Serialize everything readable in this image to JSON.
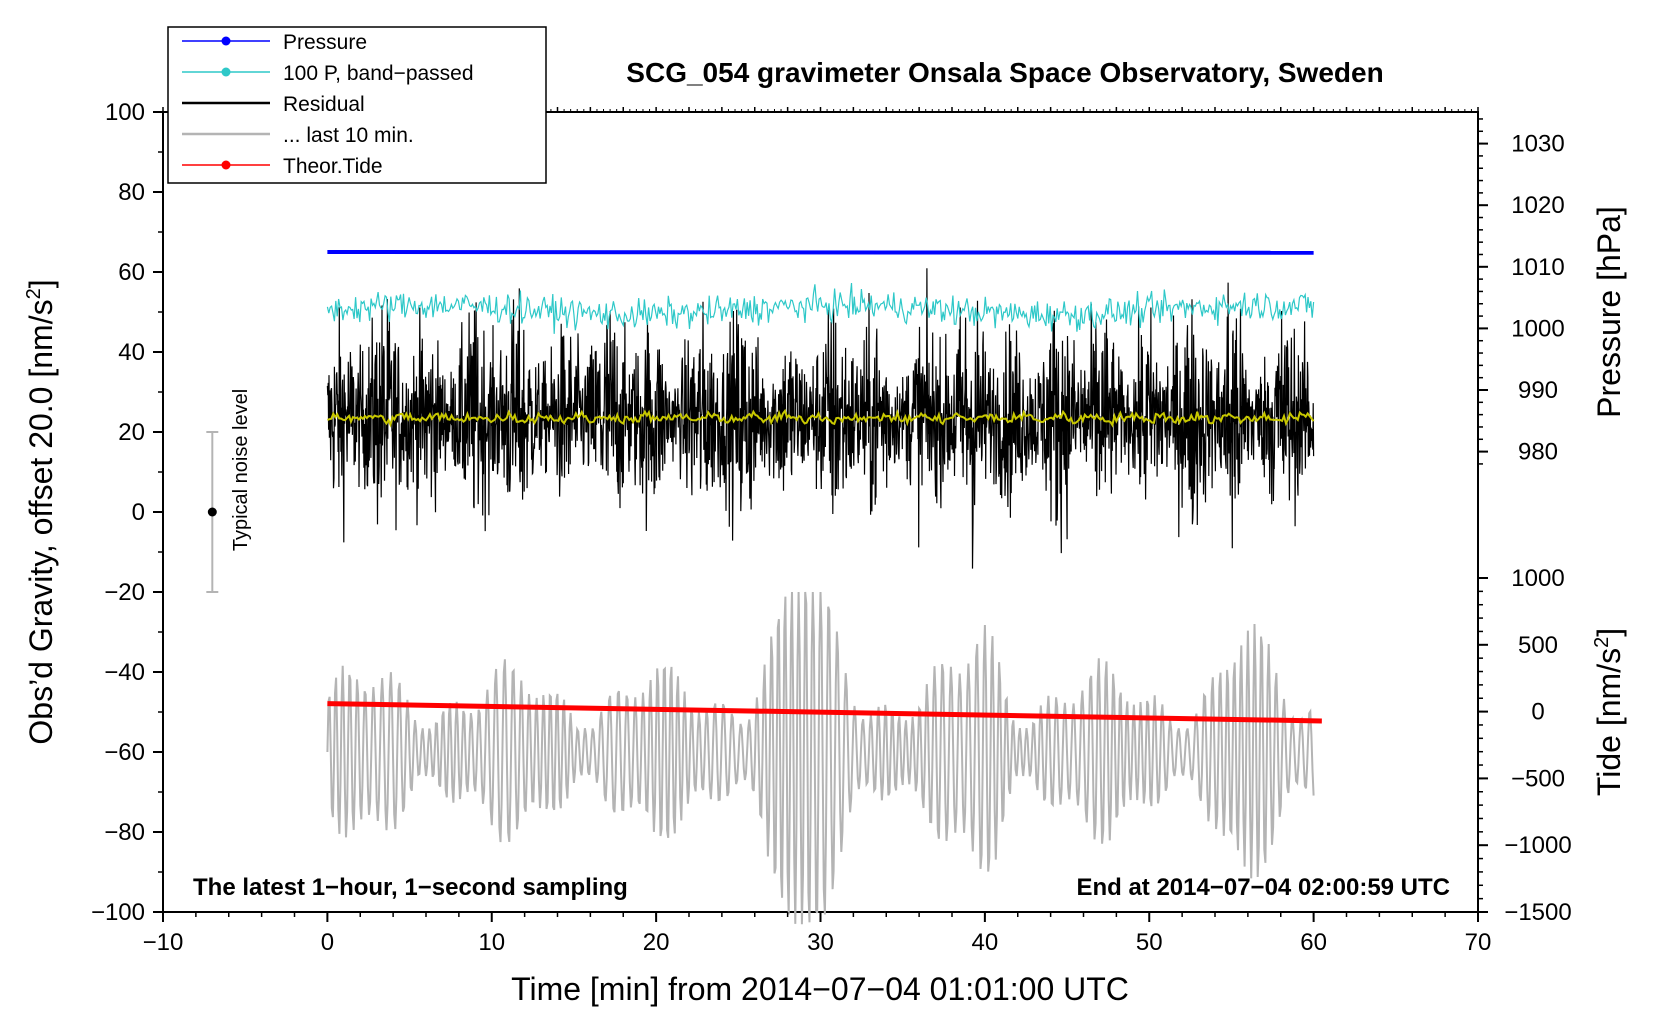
{
  "chart_data": {
    "type": "line",
    "title": "SCG_054 gravimeter Onsala Space Observatory, Sweden",
    "xlabel": "Time [min] from 2014−07−04 01:01:00 UTC",
    "ylabel_left": "Obs’d Gravity, offset 20.0 [nm/s2]",
    "ylabel_pressure": "Pressure [hPa]",
    "ylabel_tide": "Tide [nm/s2]",
    "xlim": [
      -10,
      70
    ],
    "ylim_left": [
      -100,
      100
    ],
    "ylim_tide": [
      -1500,
      1000
    ],
    "x_ticks": [
      -10,
      0,
      10,
      20,
      30,
      40,
      50,
      60,
      70
    ],
    "x_tick_labels": [
      "−10",
      "0",
      "10",
      "20",
      "30",
      "40",
      "50",
      "60",
      "70"
    ],
    "y_left_ticks": [
      100,
      80,
      60,
      40,
      20,
      0,
      -20,
      -40,
      -60,
      -80,
      -100
    ],
    "y_left_tick_labels": [
      "100",
      "80",
      "60",
      "40",
      "20",
      "0",
      "−20",
      "−40",
      "−60",
      "−80",
      "−100"
    ],
    "pressure_ticks": [
      1030,
      1020,
      1010,
      1000,
      990,
      980
    ],
    "pressure_tick_labels": [
      "1030",
      "1020",
      "1010",
      "1000",
      "990",
      "980"
    ],
    "pressure_axis_left_equiv": [
      [
        1030,
        92.1
      ],
      [
        980,
        15.1
      ]
    ],
    "tide_ticks": [
      1000,
      500,
      0,
      -500,
      -1000,
      -1500
    ],
    "tide_tick_labels": [
      "1000",
      "500",
      "0",
      "−500",
      "−1000",
      "−1500"
    ],
    "legend": [
      {
        "label": "Pressure",
        "color": "#0000ff",
        "marker": "dot"
      },
      {
        "label": "100 P, band−passed",
        "color": "#2ec8c8",
        "marker": "dot"
      },
      {
        "label": "Residual",
        "color": "#000000",
        "marker": "none"
      },
      {
        "label": "... last 10 min.",
        "color": "#b4b4b4",
        "marker": "none"
      },
      {
        "label": "Theor.Tide",
        "color": "#ff0000",
        "marker": "dot"
      }
    ],
    "series": [
      {
        "name": "Pressure",
        "color": "#0000ff",
        "x": [
          0,
          60
        ],
        "y": [
          65.0,
          64.8
        ]
      },
      {
        "name": "100 P, band−passed",
        "color": "#2ec8c8",
        "x_range": [
          0,
          60
        ],
        "y_center": 50.5,
        "y_spread": 3.5
      },
      {
        "name": "Residual",
        "color": "#000000",
        "x_range": [
          0,
          60
        ],
        "y_center": 23.5,
        "y_min": -22,
        "y_max": 65
      },
      {
        "name": "Residual running mean",
        "color": "#c8c800",
        "x_range": [
          0,
          60
        ],
        "y_center": 23.5
      },
      {
        "name": "... last 10 min.",
        "color": "#b4b4b4",
        "x_range": [
          0,
          60
        ],
        "y_center": -60,
        "y_min": -100,
        "y_max": -20
      },
      {
        "name": "Theor.Tide",
        "color": "#ff0000",
        "x": [
          0,
          60.5
        ],
        "y_tide": [
          60,
          -70
        ]
      }
    ],
    "noise_bar": {
      "label": "Typical noise level",
      "x": -7,
      "center": 0,
      "low": -20,
      "high": 20
    },
    "annotations": {
      "bottom_left": "The latest 1−hour, 1−second sampling",
      "bottom_right": "End at 2014−07−04 02:00:59 UTC"
    },
    "grid": false
  }
}
